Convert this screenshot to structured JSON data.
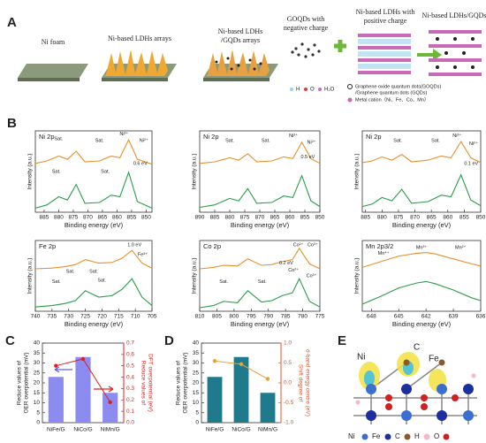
{
  "panel_letters": [
    "A",
    "B",
    "C",
    "D",
    "E"
  ],
  "schematic": {
    "labels": [
      "Ni foam",
      "Ni-based LDHs arrays",
      "Ni-based LDHs",
      "/GQDs arrays",
      "GOQDs with",
      "negative charge",
      "Ni-based LDHs with",
      "positive charge",
      "Ni-based LDHs/GQDs"
    ],
    "legend": [
      "H",
      "O",
      "H₂O",
      "Graphene oxide quantum dots(GOQDs)",
      "/Graphene quantum dots (GQDs)",
      "Metal cation（Ni、Fe、Co、Mn）"
    ]
  },
  "structure": {
    "labels": [
      "Ni",
      "C",
      "Fe"
    ],
    "legend": [
      "Ni",
      "Fe",
      "C",
      "H",
      "O"
    ]
  },
  "chart_data": [
    {
      "type": "line",
      "title": "Ni 2p",
      "xlabel": "Binding energy (eV)",
      "ylabel": "Intensity (a.u.)",
      "xlim": [
        888,
        848
      ],
      "xticks": [
        885,
        880,
        875,
        870,
        865,
        860,
        855,
        850
      ],
      "ylim": [
        0,
        10
      ],
      "x": [
        888,
        884,
        880,
        877,
        874,
        871,
        866,
        862,
        859,
        856,
        853,
        848
      ],
      "series": [
        {
          "color": "#e8902a",
          "values": [
            6.0,
            6.3,
            6.9,
            6.5,
            7.5,
            6.2,
            6.3,
            6.9,
            6.7,
            8.9,
            6.5,
            5.9
          ]
        },
        {
          "color": "#2a9d4a",
          "values": [
            0.5,
            0.9,
            1.9,
            1.5,
            3.4,
            1.1,
            1.2,
            2.1,
            1.9,
            4.9,
            1.3,
            0.5
          ]
        }
      ],
      "annotations": [
        "Sat.",
        "Sat.",
        "Sat.",
        "Sat.",
        "Ni³⁺",
        "Ni²⁺",
        "0.6 eV"
      ]
    },
    {
      "type": "line",
      "title": "Ni 2p",
      "xlabel": "Binding energy (eV)",
      "ylabel": "Intensity (a.u.)",
      "xlim": [
        890,
        850
      ],
      "xticks": [
        890,
        885,
        880,
        875,
        870,
        865,
        860,
        855,
        850
      ],
      "ylim": [
        0,
        10
      ],
      "x": [
        890,
        885,
        880,
        877,
        874,
        871,
        866,
        862,
        859,
        856,
        853,
        850
      ],
      "series": [
        {
          "color": "#e8902a",
          "values": [
            6.0,
            6.2,
            6.7,
            6.4,
            7.2,
            6.2,
            6.3,
            6.8,
            6.6,
            8.6,
            6.6,
            6.0
          ]
        },
        {
          "color": "#2a9d4a",
          "values": [
            0.6,
            0.9,
            1.7,
            1.4,
            2.9,
            1.1,
            1.2,
            2.0,
            1.8,
            4.5,
            1.4,
            0.7
          ]
        }
      ],
      "annotations": [
        "Sat.",
        "Sat.",
        "Ni³⁺",
        "Ni²⁺",
        "0.5 eV"
      ]
    },
    {
      "type": "line",
      "title": "Ni 2p",
      "xlabel": "Binding energy (eV)",
      "ylabel": "Intensity (a.u.)",
      "xlim": [
        886,
        850
      ],
      "xticks": [
        885,
        880,
        875,
        870,
        865,
        860,
        855,
        850
      ],
      "ylim": [
        0,
        10
      ],
      "x": [
        886,
        883,
        880,
        877,
        874,
        871,
        866,
        862,
        859,
        856,
        853,
        850
      ],
      "series": [
        {
          "color": "#e8902a",
          "values": [
            6.1,
            6.3,
            6.8,
            6.4,
            7.1,
            6.2,
            6.4,
            6.9,
            6.7,
            8.7,
            6.7,
            6.1
          ]
        },
        {
          "color": "#2a9d4a",
          "values": [
            0.7,
            1.0,
            1.8,
            1.4,
            2.8,
            1.1,
            1.3,
            2.1,
            1.9,
            4.6,
            1.5,
            0.8
          ]
        }
      ],
      "annotations": [
        "Sat.",
        "Sat.",
        "Ni³⁺",
        "Ni²⁺",
        "0.1 eV"
      ]
    },
    {
      "type": "line",
      "title": "Fe 2p",
      "xlabel": "Binding energy (eV)",
      "ylabel": "Intensity (a.u.)",
      "xlim": [
        740,
        705
      ],
      "xticks": [
        740,
        735,
        730,
        725,
        720,
        715,
        710,
        705
      ],
      "ylim": [
        0,
        10
      ],
      "x": [
        740,
        735,
        731,
        728,
        725,
        721,
        717,
        714,
        711,
        708,
        705
      ],
      "series": [
        {
          "color": "#e8902a",
          "values": [
            6.0,
            6.1,
            6.3,
            6.6,
            7.3,
            6.8,
            6.9,
            7.5,
            8.6,
            6.8,
            6.1
          ]
        },
        {
          "color": "#2a9d4a",
          "values": [
            0.6,
            0.8,
            1.1,
            1.5,
            2.9,
            2.0,
            2.2,
            3.1,
            4.6,
            2.0,
            0.8
          ]
        }
      ],
      "annotations": [
        "Sat.",
        "Sat.",
        "Sat.",
        "Sat.",
        "1.0 eV",
        "Fe³⁺"
      ]
    },
    {
      "type": "line",
      "title": "Co 2p",
      "xlabel": "Binding energy (eV)",
      "ylabel": "Intensity (a.u.)",
      "xlim": [
        810,
        775
      ],
      "xticks": [
        810,
        805,
        800,
        795,
        790,
        785,
        780,
        775
      ],
      "ylim": [
        0,
        10
      ],
      "x": [
        810,
        806,
        803,
        799,
        796,
        792,
        789,
        786,
        783,
        781,
        778,
        775
      ],
      "series": [
        {
          "color": "#e8902a",
          "values": [
            6.0,
            6.2,
            6.5,
            6.4,
            7.4,
            6.5,
            6.6,
            7.0,
            7.3,
            8.9,
            6.7,
            6.0
          ]
        },
        {
          "color": "#2a9d4a",
          "values": [
            0.5,
            0.8,
            1.4,
            1.2,
            2.9,
            1.3,
            1.5,
            2.2,
            2.6,
            4.6,
            1.4,
            0.6
          ]
        }
      ],
      "annotations": [
        "Sat.",
        "Sat.",
        "Co²⁺",
        "Co³⁺",
        "0.2 eV",
        "Co²⁺",
        "Co³⁺"
      ]
    },
    {
      "type": "line",
      "title": "Mn 2p3/2",
      "xlabel": "Binding energy (eV)",
      "ylabel": "Intensity (a.u.)",
      "xlim": [
        649,
        636
      ],
      "xticks": [
        648,
        645,
        642,
        639,
        636
      ],
      "ylim": [
        0,
        10
      ],
      "x": [
        649,
        647,
        645,
        643,
        642,
        641,
        639,
        637,
        636
      ],
      "series": [
        {
          "color": "#e8902a",
          "values": [
            6.2,
            7.0,
            7.8,
            8.2,
            8.3,
            8.1,
            7.4,
            6.7,
            6.4
          ]
        },
        {
          "color": "#2a9d4a",
          "values": [
            1.0,
            2.1,
            3.3,
            4.0,
            4.2,
            3.9,
            3.0,
            1.9,
            1.5
          ]
        }
      ],
      "annotations": [
        "Mn⁴⁺",
        "Mn³⁺",
        "Mn²⁺"
      ]
    },
    {
      "type": "bar",
      "categories": [
        "NiFe/G",
        "NiCo/G",
        "NiMn/G"
      ],
      "ylabel": [
        "Reduce values of",
        "OER overpotential (mV)"
      ],
      "y2label": [
        "Reduce values of",
        "DFT overpotential (eV)"
      ],
      "ylim": [
        0,
        40
      ],
      "yticks": [
        0,
        5,
        10,
        15,
        20,
        25,
        30,
        35,
        40
      ],
      "y2lim": [
        0,
        0.7
      ],
      "y2ticks": [
        {
          "value": 0,
          "label": "0.0"
        },
        0.1,
        0.2,
        0.3,
        0.4,
        0.5,
        0.6,
        0.7
      ],
      "y2color": "#e02020",
      "series": [
        {
          "kind": "bar",
          "color": "#8c8cf0",
          "values": [
            23,
            33,
            15
          ]
        },
        {
          "kind": "line",
          "axis": "y2",
          "color": "#e02020",
          "values": [
            0.5,
            0.56,
            0.18
          ]
        }
      ]
    },
    {
      "type": "bar",
      "categories": [
        "NiFe/G",
        "NiCo/G",
        "NiMn/G"
      ],
      "ylabel": [
        "Reduce values of",
        "OER overpotential (mV)"
      ],
      "y2label": [
        "Shift degree of",
        "d-band energy centre (eV)"
      ],
      "ylim": [
        0,
        40
      ],
      "yticks": [
        0,
        5,
        10,
        15,
        20,
        25,
        30,
        35,
        40
      ],
      "y2lim": [
        -1,
        1
      ],
      "y2ticks": [
        {
          "value": -1,
          "label": "-1.0"
        },
        -0.5,
        {
          "value": 0,
          "label": "0.0"
        },
        0.5,
        {
          "value": 1,
          "label": "1.0"
        }
      ],
      "y2color": "#e8502a",
      "series": [
        {
          "kind": "bar",
          "color": "#1f7a8c",
          "values": [
            23,
            33,
            15
          ]
        },
        {
          "kind": "line",
          "axis": "y2",
          "color": "#f0a030",
          "values": [
            0.55,
            0.47,
            0.1
          ]
        }
      ]
    }
  ]
}
